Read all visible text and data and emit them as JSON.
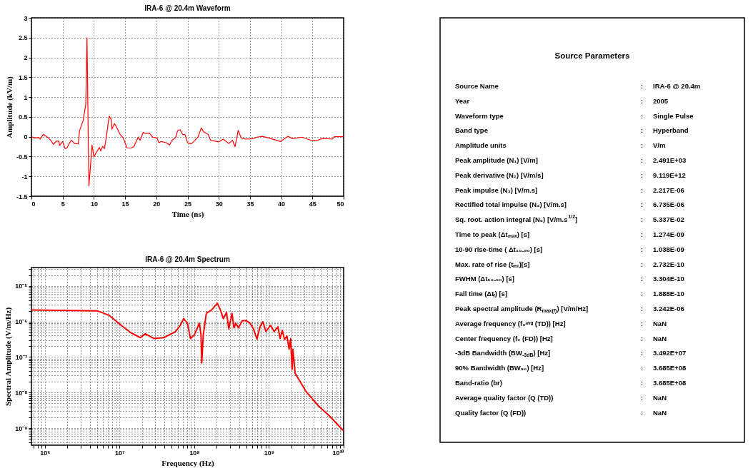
{
  "chart_data": [
    {
      "type": "line",
      "title": "IRA-6 @ 20.4m Waveform",
      "xlabel": "Time (ns)",
      "ylabel": "Amplitude (kV/m)",
      "xlim": [
        0,
        50
      ],
      "xticks": [
        0,
        5,
        10,
        15,
        20,
        25,
        30,
        35,
        40,
        45,
        50
      ],
      "ylim": [
        -1.5,
        3
      ],
      "yticks": [
        -1.5,
        -1,
        -0.5,
        0,
        0.5,
        1,
        1.5,
        2,
        2.5,
        3
      ],
      "grid": true,
      "line_style": "solid",
      "series": [
        {
          "color": "#ff0000",
          "x": [
            0,
            0.46,
            1.2,
            1.4,
            1.9,
            2.7,
            3.1,
            3.5,
            4.0,
            4.4,
            4.5,
            5.0,
            5.4,
            5.7,
            6.0,
            6.4,
            6.9,
            7.5,
            7.7,
            8.3,
            8.6,
            8.7,
            8.9,
            9.2,
            9.5,
            9.7,
            10.0,
            10.3,
            10.9,
            11.1,
            11.4,
            11.7,
            12.0,
            12.45,
            12.75,
            12.9,
            13.3,
            13.6,
            14.2,
            14.7,
            15.3,
            15.9,
            16.4,
            17.1,
            17.4,
            17.9,
            18.3,
            18.9,
            19.4,
            20.1,
            20.4,
            20.8,
            21.6,
            22.1,
            22.5,
            23.1,
            23.4,
            23.8,
            24.2,
            24.6,
            25.0,
            25.6,
            26.2,
            26.7,
            27.2,
            27.6,
            28.3,
            28.7,
            30.0,
            30.7,
            31.6,
            32.2,
            32.6,
            32.9,
            33.1,
            33.6,
            34.3,
            35.5,
            36.1,
            37.0,
            38.4,
            39.9,
            41.1,
            41.8,
            43.3,
            45.0,
            45.8,
            46.7,
            48.2,
            48.5,
            50
          ],
          "values": [
            0,
            -0.03,
            -0.02,
            -0.06,
            0.06,
            -0.03,
            -0.09,
            -0.19,
            -0.11,
            -0.11,
            -0.22,
            -0.12,
            -0.3,
            -0.28,
            -0.18,
            -0.09,
            -0.17,
            -0.18,
            0.15,
            0.42,
            0.72,
            0.81,
            2.49,
            -1.24,
            -0.66,
            -0.21,
            -0.51,
            -0.42,
            -0.27,
            -0.36,
            -0.24,
            -0.3,
            0,
            0.52,
            0.45,
            0.19,
            0.33,
            0.25,
            0.06,
            -0.03,
            -0.28,
            -0.29,
            -0.25,
            -0.01,
            -0.09,
            0.11,
            0.08,
            0.09,
            -0.01,
            -0.03,
            -0.15,
            -0.12,
            -0.15,
            -0.21,
            -0.09,
            -0.02,
            0.15,
            0.18,
            0.06,
            0.05,
            -0.15,
            -0.18,
            -0.09,
            0,
            0.22,
            0.12,
            0.06,
            -0.09,
            -0.13,
            -0.06,
            -0.17,
            -0.09,
            -0.25,
            -0.03,
            0.16,
            -0.03,
            -0.06,
            -0.05,
            -0.01,
            0.01,
            -0.05,
            -0.12,
            0.01,
            -0.05,
            -0.01,
            -0.1,
            -0.09,
            -0.04,
            -0.06,
            0,
            0
          ]
        }
      ]
    },
    {
      "type": "line",
      "title": "IRA-6 @ 20.4m Spectrum",
      "xlabel": "Frequency (Hz)",
      "ylabel": "Spectral Amplitude (V/m/Hz)",
      "log": "xy",
      "grid": true,
      "xlim": [
        660000,
        10000000000
      ],
      "ylim": [
        3.3e-10,
        3.3e-05
      ],
      "xticks": [
        {
          "value": 700000,
          "label": null
        },
        {
          "value": 800000,
          "label": null
        },
        {
          "value": 900000,
          "label": null
        },
        {
          "value": 1000000,
          "label": "10⁶"
        },
        {
          "value": 2000000,
          "label": null
        },
        {
          "value": 3000000,
          "label": null
        },
        {
          "value": 4000000,
          "label": null
        },
        {
          "value": 5000000,
          "label": null
        },
        {
          "value": 6000000,
          "label": null
        },
        {
          "value": 7000000,
          "label": null
        },
        {
          "value": 8000000,
          "label": null
        },
        {
          "value": 9000000,
          "label": null
        },
        {
          "value": 10000000,
          "label": "10⁷"
        },
        {
          "value": 20000000,
          "label": null
        },
        {
          "value": 30000000,
          "label": null
        },
        {
          "value": 40000000,
          "label": null
        },
        {
          "value": 50000000,
          "label": null
        },
        {
          "value": 60000000,
          "label": null
        },
        {
          "value": 70000000,
          "label": null
        },
        {
          "value": 80000000,
          "label": null
        },
        {
          "value": 90000000,
          "label": null
        },
        {
          "value": 100000000,
          "label": "10⁸"
        },
        {
          "value": 200000000,
          "label": null
        },
        {
          "value": 300000000,
          "label": null
        },
        {
          "value": 400000000,
          "label": null
        },
        {
          "value": 500000000,
          "label": null
        },
        {
          "value": 600000000,
          "label": null
        },
        {
          "value": 700000000,
          "label": null
        },
        {
          "value": 800000000,
          "label": null
        },
        {
          "value": 900000000,
          "label": null
        },
        {
          "value": 1000000000,
          "label": "10⁹"
        },
        {
          "value": 2000000000,
          "label": null
        },
        {
          "value": 3000000000,
          "label": null
        },
        {
          "value": 4000000000,
          "label": null
        },
        {
          "value": 5000000000,
          "label": null
        },
        {
          "value": 6000000000,
          "label": null
        },
        {
          "value": 7000000000,
          "label": null
        },
        {
          "value": 8000000000,
          "label": null
        },
        {
          "value": 9000000000,
          "label": null
        },
        {
          "value": 10000000000,
          "label": "10¹⁰"
        }
      ],
      "yticks": [
        {
          "value": 4e-10,
          "label": null
        },
        {
          "value": 5e-10,
          "label": null
        },
        {
          "value": 6e-10,
          "label": null
        },
        {
          "value": 7e-10,
          "label": null
        },
        {
          "value": 8e-10,
          "label": null
        },
        {
          "value": 9e-10,
          "label": null
        },
        {
          "value": 1e-09,
          "label": "10⁻⁹"
        },
        {
          "value": 2e-09,
          "label": null
        },
        {
          "value": 3e-09,
          "label": null
        },
        {
          "value": 4e-09,
          "label": null
        },
        {
          "value": 5e-09,
          "label": null
        },
        {
          "value": 6e-09,
          "label": null
        },
        {
          "value": 7e-09,
          "label": null
        },
        {
          "value": 8e-09,
          "label": null
        },
        {
          "value": 9e-09,
          "label": null
        },
        {
          "value": 1e-08,
          "label": "10⁻⁸"
        },
        {
          "value": 2e-08,
          "label": null
        },
        {
          "value": 3e-08,
          "label": null
        },
        {
          "value": 4e-08,
          "label": null
        },
        {
          "value": 5e-08,
          "label": null
        },
        {
          "value": 6e-08,
          "label": null
        },
        {
          "value": 7e-08,
          "label": null
        },
        {
          "value": 8e-08,
          "label": null
        },
        {
          "value": 9e-08,
          "label": null
        },
        {
          "value": 1e-07,
          "label": "10⁻⁷"
        },
        {
          "value": 2e-07,
          "label": null
        },
        {
          "value": 3e-07,
          "label": null
        },
        {
          "value": 4e-07,
          "label": null
        },
        {
          "value": 5e-07,
          "label": null
        },
        {
          "value": 6e-07,
          "label": null
        },
        {
          "value": 7e-07,
          "label": null
        },
        {
          "value": 8e-07,
          "label": null
        },
        {
          "value": 9e-07,
          "label": null
        },
        {
          "value": 1e-06,
          "label": "10⁻⁶"
        },
        {
          "value": 2e-06,
          "label": null
        },
        {
          "value": 3e-06,
          "label": null
        },
        {
          "value": 4e-06,
          "label": null
        },
        {
          "value": 5e-06,
          "label": null
        },
        {
          "value": 6e-06,
          "label": null
        },
        {
          "value": 7e-06,
          "label": null
        },
        {
          "value": 8e-06,
          "label": null
        },
        {
          "value": 9e-06,
          "label": null
        },
        {
          "value": 1e-05,
          "label": "10⁻⁵"
        },
        {
          "value": 2e-05,
          "label": null
        },
        {
          "value": 3e-05,
          "label": null
        }
      ],
      "series": [
        {
          "color": "#ff0000",
          "x": [
            660000,
            5000000,
            7200000,
            10500000,
            14000000,
            19000000,
            22000000,
            29000000,
            39000000,
            56000000,
            65000000,
            72000000,
            81000000,
            89000000,
            100000000,
            117000000,
            123000000,
            126000000,
            132000000,
            145000000,
            170000000,
            186000000,
            204000000,
            224000000,
            245000000,
            270000000,
            290000000,
            320000000,
            340000000,
            360000000,
            390000000,
            440000000,
            490000000,
            560000000,
            620000000,
            690000000,
            760000000,
            830000000,
            910000000,
            1050000000,
            1170000000,
            1320000000,
            1410000000,
            1510000000,
            1620000000,
            1740000000,
            1860000000,
            1950000000,
            2040000000,
            2090000000,
            2240000000,
            3160000000,
            4600000000,
            6600000000,
            10000000000
          ],
          "values": [
            2.1e-06,
            2e-06,
            1.5e-06,
            7.8e-07,
            4.9e-07,
            3.5e-07,
            4.5e-07,
            3.3e-07,
            3.5e-07,
            5.2e-07,
            7.8e-07,
            1.2e-06,
            8.9e-07,
            3.3e-07,
            4.2e-07,
            8.9e-07,
            4.2e-07,
            6.8e-08,
            4.2e-07,
            1.7e-06,
            2.1e-06,
            2.6e-06,
            3.242e-06,
            2.1e-06,
            1.2e-06,
            1.8e-06,
            6.2e-07,
            1.7e-06,
            6.6e-07,
            8.9e-07,
            6.6e-07,
            1.05e-06,
            1.07e-06,
            8.9e-07,
            6.2e-07,
            3.2e-07,
            7.1e-07,
            9.8e-07,
            5.2e-07,
            7.8e-07,
            5.2e-07,
            7.1e-07,
            3.3e-07,
            5.6e-07,
            3.1e-07,
            3.9e-07,
            1.66e-07,
            3.3e-07,
            4.5e-08,
            1.66e-07,
            3.5e-08,
            1.05e-08,
            4.2e-09,
            2.1e-09,
            8.3e-10
          ]
        }
      ]
    },
    {
      "type": "other",
      "title": "Source Parameters",
      "annotations": [
        "Source Name",
        ":",
        "IRA-6 @ 20.4m",
        "Year",
        ":",
        "2005",
        "Waveform type",
        ":",
        "Single Pulse",
        "Band type",
        ":",
        "Hyperband",
        "Amplitude units",
        ":",
        "V/m",
        "Peak amplitude (N₁) [V/m]",
        ":",
        "2.491E+03",
        "Peak derivative (N₂) [V/m/s]",
        ":",
        "9.119E+12",
        "Peak impulse (N₃) [V/m.s]",
        ":",
        "2.217E-06",
        "Rectified total impulse (N₄) [V/m.s]",
        ":",
        "6.735E-06",
        "Sq. root. action integral (N₅) [V/m.s$^{1/2}$]",
        ":",
        "5.337E-02",
        "Time to peak  (Δtₘₐₓ) [s]",
        ":",
        "1.274E-09",
        "10-90 rise-time ( Δt₁₀₋₉₀) [s]",
        ":",
        "1.038E-09",
        "Max. rate of rise (tₘᵣ)[s]",
        ":",
        "2.732E-10",
        "FWHM (Δt₅₀₋₅₀) [s]",
        ":",
        "3.304E-10",
        "Fall time (Δt$_{f}$) [s]",
        ":",
        "1.888E-10",
        "Peak spectral amplitude (R$_{max(f)}$) [V/m/Hz]",
        ":",
        "3.242E-06",
        "Average frequency  (f₀ᵃᵛᵍ (TD)) [Hz]",
        ":",
        "NaN",
        "Center frequency (f₀ (FD)) [Hz]",
        ":",
        "NaN",
        "-3dB Bandwidth (BW$_{-3dB}$) [Hz]",
        ":",
        "3.492E+07",
        "90% Bandwidth (BW₉₀) [Hz]",
        ":",
        "3.685E+08",
        "Band-ratio (br)",
        ":",
        "3.685E+08",
        "Average quality factor (Q (TD))",
        ":",
        "NaN",
        "Quality factor (Q (FD))",
        ":",
        "NaN"
      ]
    }
  ]
}
